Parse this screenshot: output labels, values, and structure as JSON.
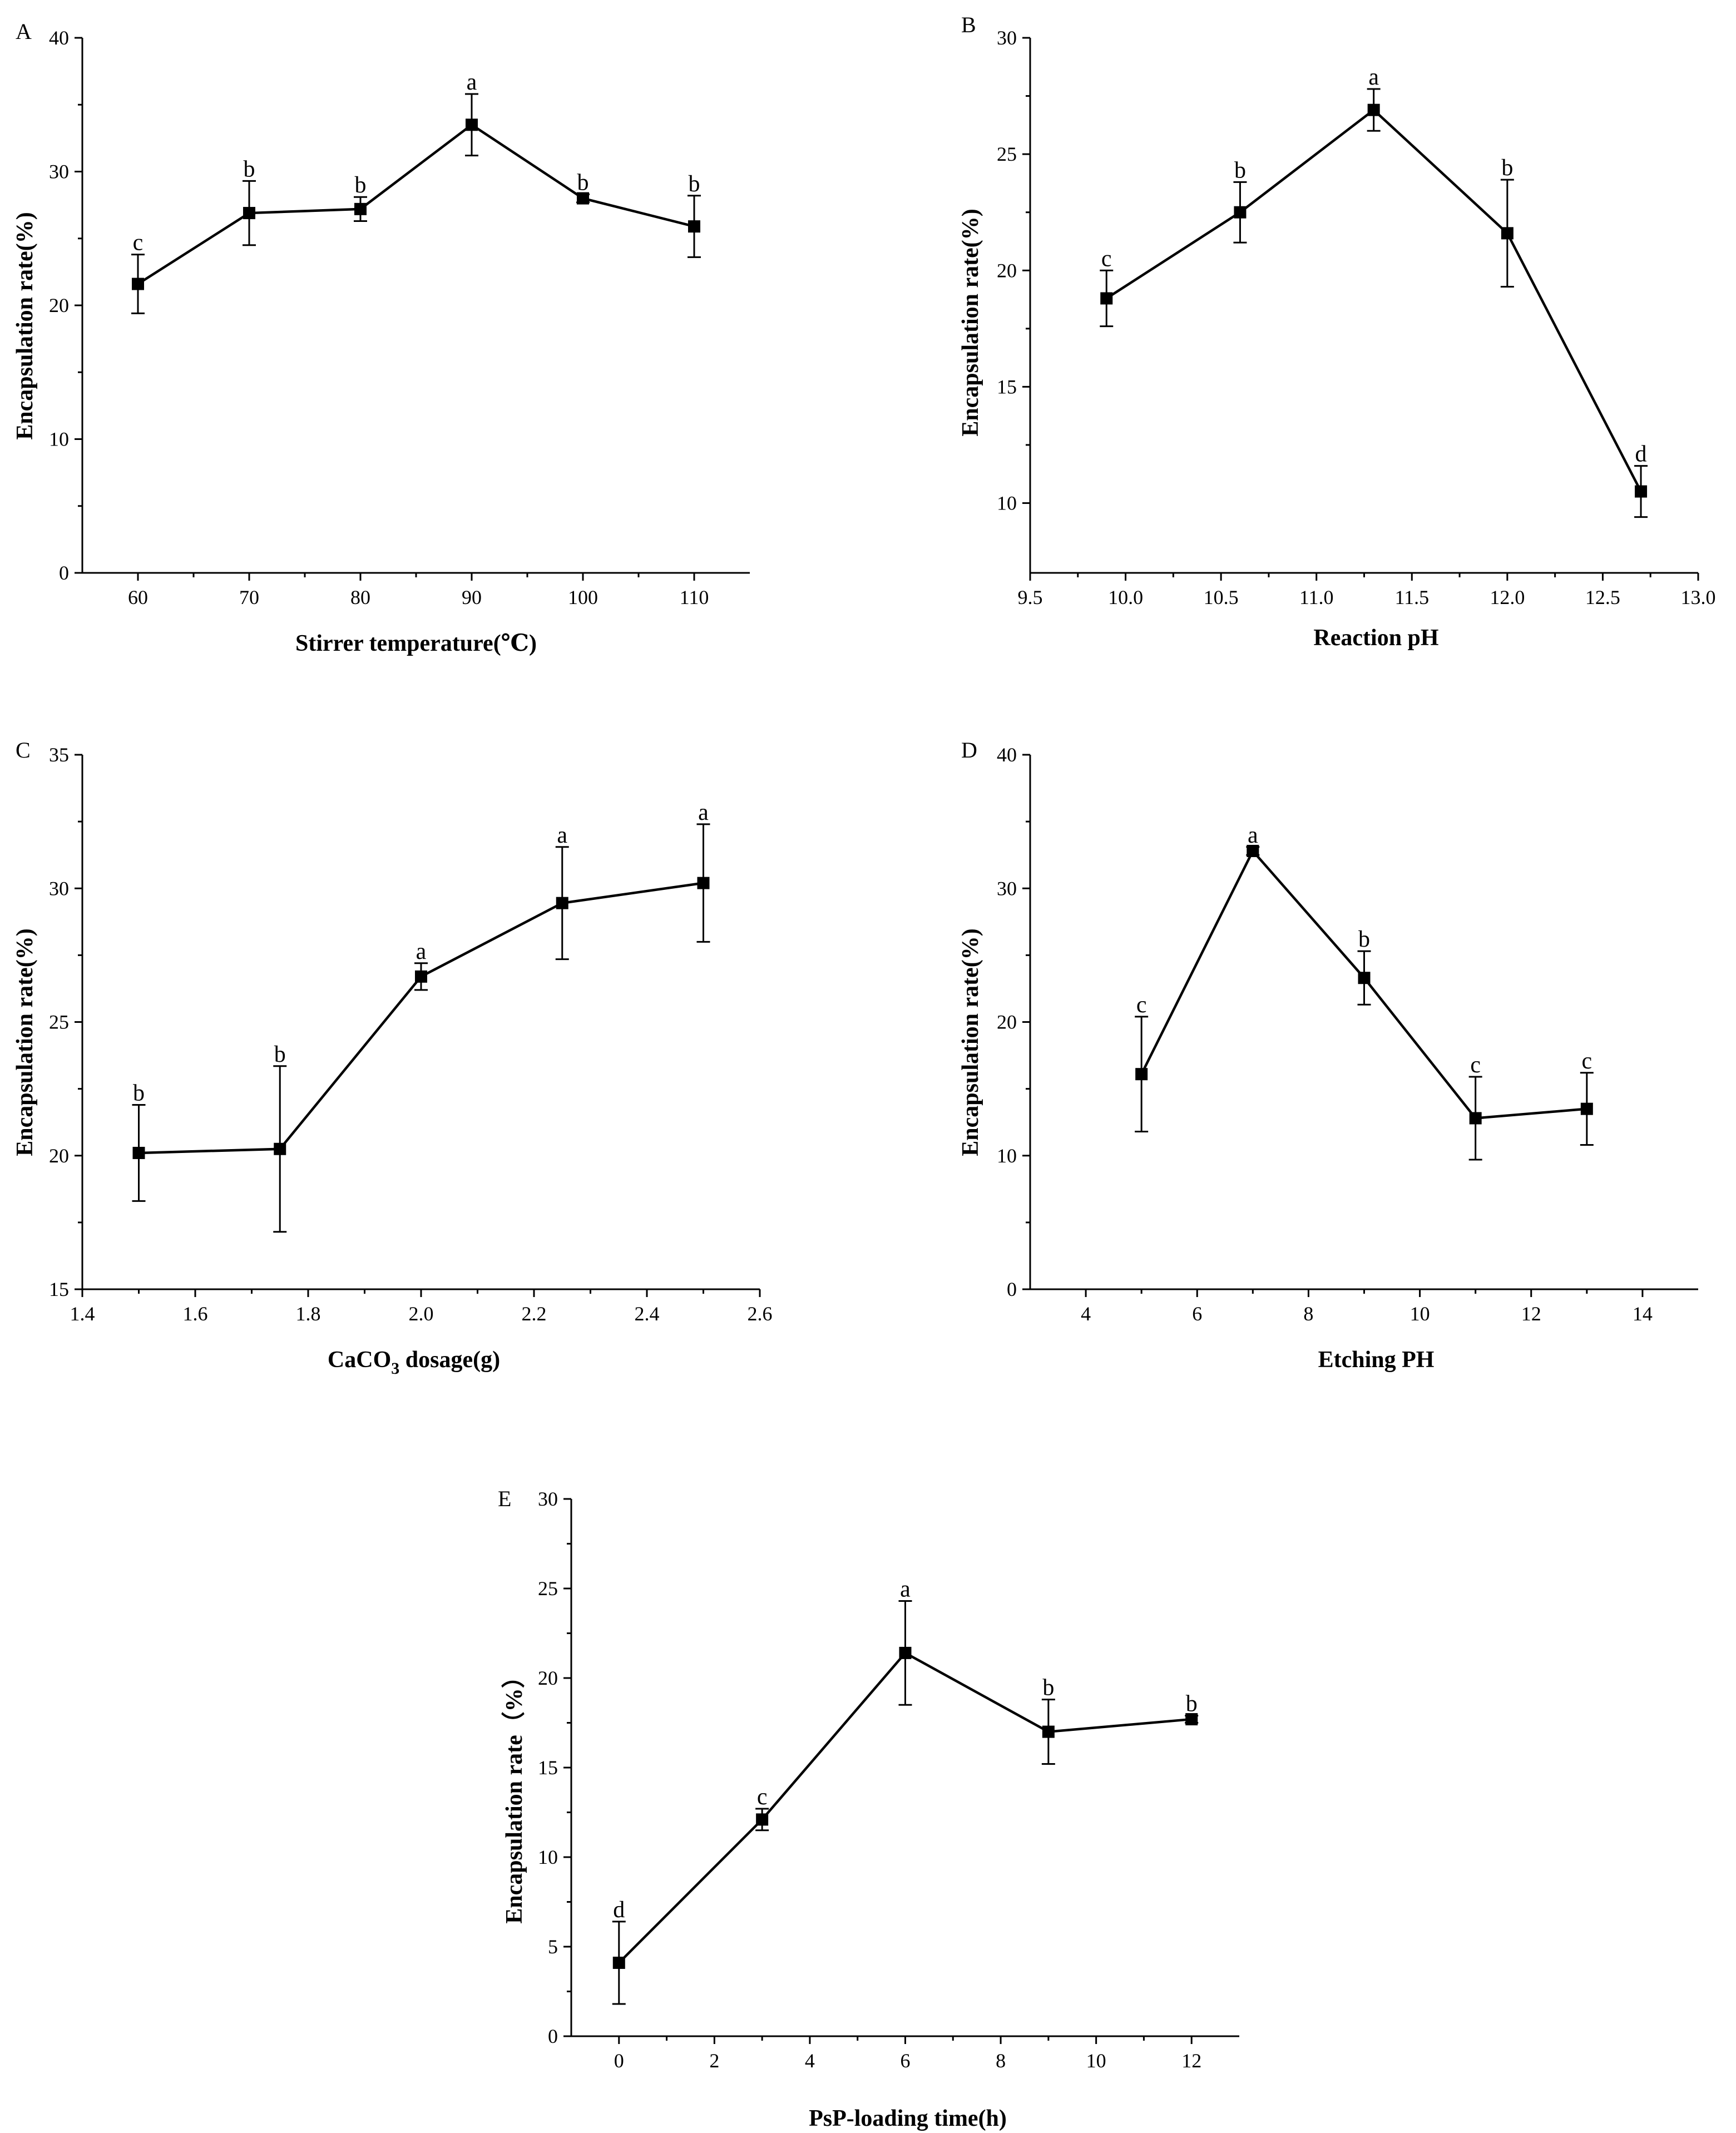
{
  "chart_data": [
    {
      "type": "line",
      "panel": "A",
      "xlabel": "Stirrer temperature(℃)",
      "ylabel": "Encapsulation rate(%)",
      "xlim": [
        55,
        115
      ],
      "ylim": [
        0,
        40
      ],
      "xticks": [
        60,
        70,
        80,
        90,
        100,
        110
      ],
      "yticks": [
        0,
        10,
        20,
        30,
        40
      ],
      "x": [
        60,
        70,
        80,
        90,
        100,
        110
      ],
      "y": [
        21.6,
        26.9,
        27.2,
        33.5,
        28.0,
        25.9
      ],
      "err": [
        2.2,
        2.4,
        0.9,
        2.3,
        0.3,
        2.3
      ],
      "sig": [
        "c",
        "b",
        "b",
        "a",
        "b",
        "b"
      ]
    },
    {
      "type": "line",
      "panel": "B",
      "xlabel": "Reaction pH",
      "ylabel": "Encapsulation rate(%)",
      "xlim": [
        9.5,
        13.0
      ],
      "ylim": [
        7,
        30
      ],
      "xticks": [
        9.5,
        10.0,
        10.5,
        11.0,
        11.5,
        12.0,
        12.5,
        13.0
      ],
      "xtick_labels": [
        "9.5",
        "10.0",
        "10.5",
        "11.0",
        "11.5",
        "12.0",
        "12.5",
        "13.0"
      ],
      "yticks": [
        10,
        15,
        20,
        25,
        30
      ],
      "x": [
        9.9,
        10.6,
        11.3,
        12.0,
        12.7
      ],
      "y": [
        18.8,
        22.5,
        26.9,
        21.6,
        10.5
      ],
      "err": [
        1.2,
        1.3,
        0.9,
        2.3,
        1.1
      ],
      "sig": [
        "c",
        "b",
        "a",
        "b",
        "d"
      ]
    },
    {
      "type": "line",
      "panel": "C",
      "xlabel_main": "CaCO",
      "xlabel_sub": "3",
      "xlabel_rest": " dosage(g)",
      "ylabel": "Encapsulation rate(%)",
      "xlim": [
        1.4,
        2.6
      ],
      "ylim": [
        15,
        35
      ],
      "xticks": [
        1.4,
        1.6,
        1.8,
        2.0,
        2.2,
        2.4,
        2.6
      ],
      "xtick_labels": [
        "1.4",
        "1.6",
        "1.8",
        "2.0",
        "2.2",
        "2.4",
        "2.6"
      ],
      "yticks": [
        15,
        20,
        25,
        30,
        35
      ],
      "x": [
        1.5,
        1.75,
        2.0,
        2.25,
        2.5
      ],
      "y": [
        20.1,
        20.25,
        26.7,
        29.45,
        30.2
      ],
      "err": [
        1.8,
        3.1,
        0.5,
        2.1,
        2.2
      ],
      "sig": [
        "b",
        "b",
        "a",
        "a",
        "a"
      ]
    },
    {
      "type": "line",
      "panel": "D",
      "xlabel": "Etching PH",
      "ylabel": "Encapsulation rate(%)",
      "xlim": [
        3,
        15
      ],
      "ylim": [
        0,
        40
      ],
      "xticks": [
        4,
        6,
        8,
        10,
        12,
        14
      ],
      "yticks": [
        0,
        10,
        20,
        30,
        40
      ],
      "x": [
        5,
        7,
        9,
        11,
        13
      ],
      "y": [
        16.1,
        32.8,
        23.3,
        12.8,
        13.5
      ],
      "err": [
        4.3,
        0.3,
        2.0,
        3.1,
        2.7
      ],
      "sig": [
        "c",
        "a",
        "b",
        "c",
        "c"
      ]
    },
    {
      "type": "line",
      "panel": "E",
      "xlabel": "PsP-loading time(h)",
      "ylabel": "Encapsulation rate（%）",
      "xlim": [
        -1,
        13
      ],
      "ylim": [
        0,
        30
      ],
      "xticks": [
        0,
        2,
        4,
        6,
        8,
        10,
        12
      ],
      "yticks": [
        0,
        5,
        10,
        15,
        20,
        25,
        30
      ],
      "x": [
        0,
        3,
        6,
        9,
        12
      ],
      "y": [
        4.1,
        12.1,
        21.4,
        17.0,
        17.7
      ],
      "err": [
        2.3,
        0.6,
        2.9,
        1.8,
        0.2
      ],
      "sig": [
        "d",
        "c",
        "a",
        "b",
        "b"
      ]
    }
  ]
}
